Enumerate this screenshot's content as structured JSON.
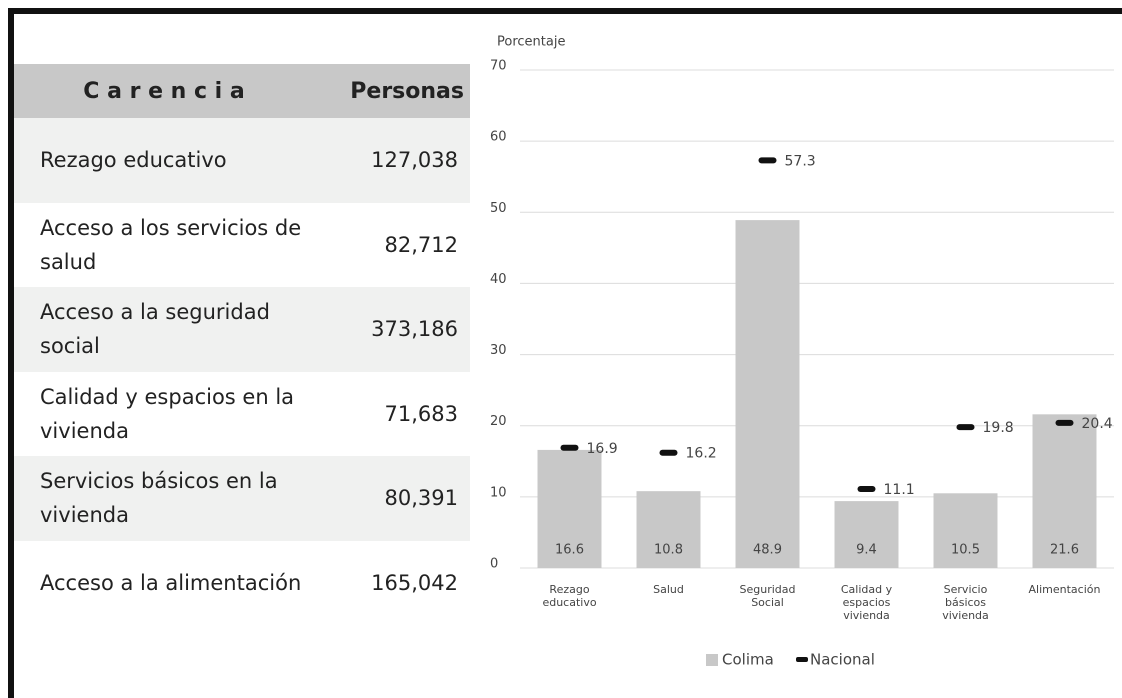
{
  "table": {
    "header": [
      "C a r e n c i a",
      "Personas"
    ],
    "rows": [
      [
        "Rezago educativo",
        "127,038"
      ],
      [
        "Acceso a los servicios de salud",
        "82,712"
      ],
      [
        "Acceso a la seguridad social",
        "373,186"
      ],
      [
        "Calidad y espacios en la vivienda",
        "71,683"
      ],
      [
        "Servicios básicos en la vivienda",
        "80,391"
      ],
      [
        "Acceso a la alimentación",
        "165,042"
      ]
    ]
  },
  "chart_data": {
    "type": "bar",
    "y_label": "Porcentaje",
    "categories": [
      [
        "Rezago",
        "educativo"
      ],
      [
        "Salud"
      ],
      [
        "Seguridad",
        "Social"
      ],
      [
        "Calidad y",
        "espacios",
        "vivienda"
      ],
      [
        "Servicio",
        "básicos",
        "vivienda"
      ],
      [
        "Alimentación"
      ]
    ],
    "series": [
      {
        "name": "Colima",
        "color": "#c8c8c8",
        "values": [
          16.6,
          10.8,
          48.9,
          9.4,
          10.5,
          21.6
        ]
      },
      {
        "name": "Nacional",
        "color": "#111111",
        "marker": "dash",
        "values": [
          16.9,
          16.2,
          57.3,
          11.1,
          19.8,
          20.4
        ]
      }
    ],
    "ylim": [
      0,
      70
    ],
    "yticks": [
      0,
      10,
      20,
      30,
      40,
      50,
      60,
      70
    ],
    "grid": true,
    "legend": "bottom"
  }
}
